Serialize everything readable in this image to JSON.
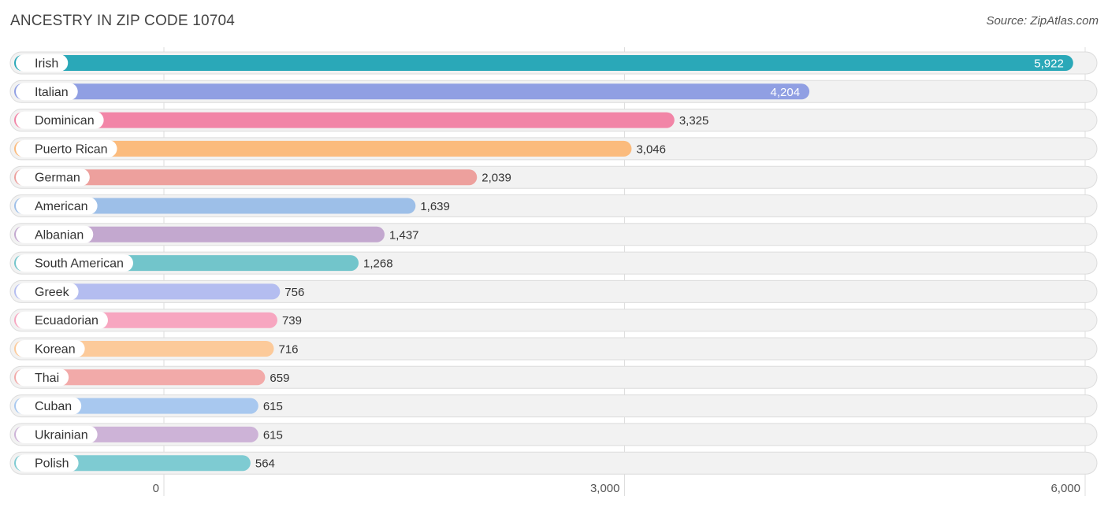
{
  "header": {
    "title": "ANCESTRY IN ZIP CODE 10704",
    "source": "Source: ZipAtlas.com"
  },
  "chart_data": {
    "type": "bar",
    "orientation": "horizontal",
    "title": "ANCESTRY IN ZIP CODE 10704",
    "xlabel": "",
    "ylabel": "",
    "xlim": [
      0,
      6000
    ],
    "ticks": [
      {
        "value": 0,
        "label": "0"
      },
      {
        "value": 3000,
        "label": "3,000"
      },
      {
        "value": 6000,
        "label": "6,000"
      }
    ],
    "categories": [
      "Irish",
      "Italian",
      "Dominican",
      "Puerto Rican",
      "German",
      "American",
      "Albanian",
      "South American",
      "Greek",
      "Ecuadorian",
      "Korean",
      "Thai",
      "Cuban",
      "Ukrainian",
      "Polish"
    ],
    "values": [
      5922,
      4204,
      3325,
      3046,
      2039,
      1639,
      1437,
      1268,
      756,
      739,
      716,
      659,
      615,
      615,
      564
    ],
    "value_labels": [
      "5,922",
      "4,204",
      "3,325",
      "3,046",
      "2,039",
      "1,639",
      "1,437",
      "1,268",
      "756",
      "739",
      "716",
      "659",
      "615",
      "615",
      "564"
    ],
    "colors": [
      "#2aa8b8",
      "#909fe3",
      "#f285a7",
      "#fbbb7d",
      "#eda09d",
      "#9dbfe8",
      "#c3a8cf",
      "#72c5cb",
      "#b4bdf0",
      "#f7a6c0",
      "#fcca9a",
      "#f2aaa9",
      "#a8c8ef",
      "#cdb3d7",
      "#7ecbd2"
    ],
    "label_inside": [
      true,
      true,
      false,
      false,
      false,
      false,
      false,
      false,
      false,
      false,
      false,
      false,
      false,
      false,
      false
    ],
    "grid": true
  }
}
